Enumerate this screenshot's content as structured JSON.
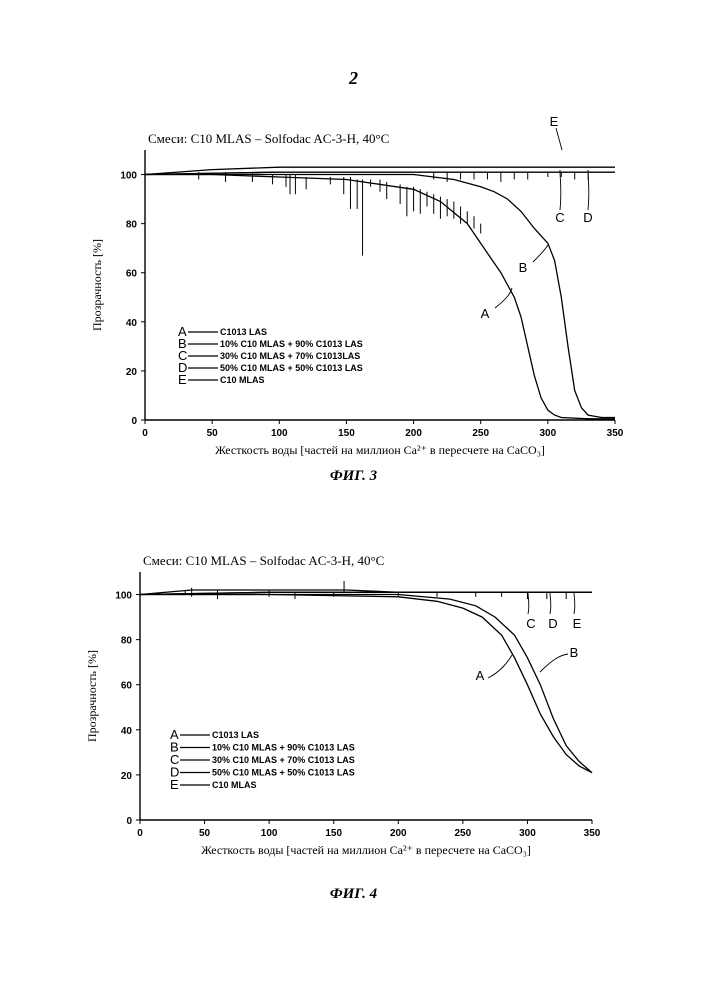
{
  "page_number": "2",
  "chart_data": [
    {
      "type": "line",
      "figure_label": "ФИГ. 3",
      "title": "Смеси: C10 MLAS – Solfodac AC-3-H, 40°C",
      "xlabel": "Жесткость воды [частей на миллион Ca²⁺ в пересчете на CaCO₃]",
      "ylabel": "Прозрачность [%]",
      "xlim": [
        0,
        350
      ],
      "ylim": [
        0,
        110
      ],
      "xticks": [
        "0",
        "50",
        "100",
        "150",
        "200",
        "250",
        "300",
        "350"
      ],
      "yticks": [
        "0",
        "20",
        "40",
        "60",
        "80",
        "100"
      ],
      "grid": false,
      "legend_position": "bottom-left",
      "legend": [
        {
          "letter": "A",
          "label": "C1013 LAS"
        },
        {
          "letter": "B",
          "label": "10% C10 MLAS + 90% C1013 LAS"
        },
        {
          "letter": "C",
          "label": "30% C10 MLAS + 70% C1013LAS"
        },
        {
          "letter": "D",
          "label": "50% C10 MLAS + 50% C1013 LAS"
        },
        {
          "letter": "E",
          "label": "C10 MLAS"
        }
      ],
      "series": [
        {
          "name": "A",
          "x": [
            0,
            50,
            100,
            150,
            200,
            220,
            240,
            255,
            265,
            270,
            275,
            280,
            285,
            290,
            295,
            300,
            305,
            310,
            330,
            350
          ],
          "y": [
            100,
            100,
            99,
            98,
            94,
            89,
            80,
            68,
            60,
            55,
            50,
            42,
            30,
            18,
            9,
            4,
            2,
            1,
            0.5,
            0.5
          ]
        },
        {
          "name": "B",
          "x": [
            0,
            50,
            100,
            150,
            200,
            230,
            250,
            260,
            270,
            280,
            290,
            300,
            305,
            310,
            315,
            320,
            325,
            330,
            340,
            350
          ],
          "y": [
            100,
            100,
            100,
            100,
            100,
            98,
            95,
            93,
            90,
            85,
            78,
            72,
            65,
            50,
            30,
            12,
            5,
            2,
            1,
            1
          ]
        },
        {
          "name": "C",
          "x": [
            0,
            100,
            200,
            300,
            350
          ],
          "y": [
            100,
            101,
            101,
            101,
            101
          ]
        },
        {
          "name": "D",
          "x": [
            0,
            100,
            200,
            300,
            350
          ],
          "y": [
            100,
            101,
            101,
            101,
            101
          ]
        },
        {
          "name": "E",
          "x": [
            0,
            50,
            100,
            200,
            300,
            350
          ],
          "y": [
            100,
            102,
            103,
            103,
            103,
            103
          ]
        }
      ],
      "annotations": [
        "E",
        "C",
        "D",
        "B",
        "A"
      ]
    },
    {
      "type": "line",
      "figure_label": "ФИГ. 4",
      "title": "Смеси: C10 MLAS – Solfodac AC-3-H, 40°C",
      "xlabel": "Жесткость воды [частей на миллион Ca²⁺ в пересчете на CaCO₃]",
      "ylabel": "Прозрачность [%]",
      "xlim": [
        0,
        350
      ],
      "ylim": [
        0,
        110
      ],
      "xticks": [
        "0",
        "50",
        "100",
        "150",
        "200",
        "250",
        "300",
        "350"
      ],
      "yticks": [
        "0",
        "20",
        "40",
        "60",
        "80",
        "100"
      ],
      "grid": false,
      "legend_position": "bottom-left",
      "legend": [
        {
          "letter": "A",
          "label": "C1013 LAS"
        },
        {
          "letter": "B",
          "label": "10% C10 MLAS + 90% C1013 LAS"
        },
        {
          "letter": "C",
          "label": "30% C10 MLAS + 70% C1013 LAS"
        },
        {
          "letter": "D",
          "label": "50% C10 MLAS + 50% C1013 LAS"
        },
        {
          "letter": "E",
          "label": "C10 MLAS"
        }
      ],
      "series": [
        {
          "name": "A",
          "x": [
            0,
            100,
            200,
            230,
            250,
            265,
            280,
            290,
            300,
            310,
            320,
            330,
            340,
            350
          ],
          "y": [
            100,
            100,
            99,
            97,
            94,
            90,
            82,
            72,
            60,
            47,
            37,
            29,
            24,
            21
          ]
        },
        {
          "name": "B",
          "x": [
            0,
            100,
            200,
            240,
            260,
            275,
            290,
            300,
            310,
            320,
            330,
            340,
            350
          ],
          "y": [
            100,
            100,
            100,
            98,
            95,
            90,
            82,
            72,
            60,
            45,
            33,
            26,
            21
          ]
        },
        {
          "name": "C",
          "x": [
            0,
            100,
            200,
            300,
            350
          ],
          "y": [
            100,
            101,
            101,
            101,
            101
          ]
        },
        {
          "name": "D",
          "x": [
            0,
            100,
            200,
            300,
            350
          ],
          "y": [
            100,
            101,
            101,
            101,
            101
          ]
        },
        {
          "name": "E",
          "x": [
            0,
            40,
            160,
            200,
            300,
            350
          ],
          "y": [
            100,
            102,
            102,
            101,
            101,
            101
          ]
        }
      ],
      "annotations": [
        "C",
        "D",
        "E",
        "B",
        "A"
      ]
    }
  ]
}
